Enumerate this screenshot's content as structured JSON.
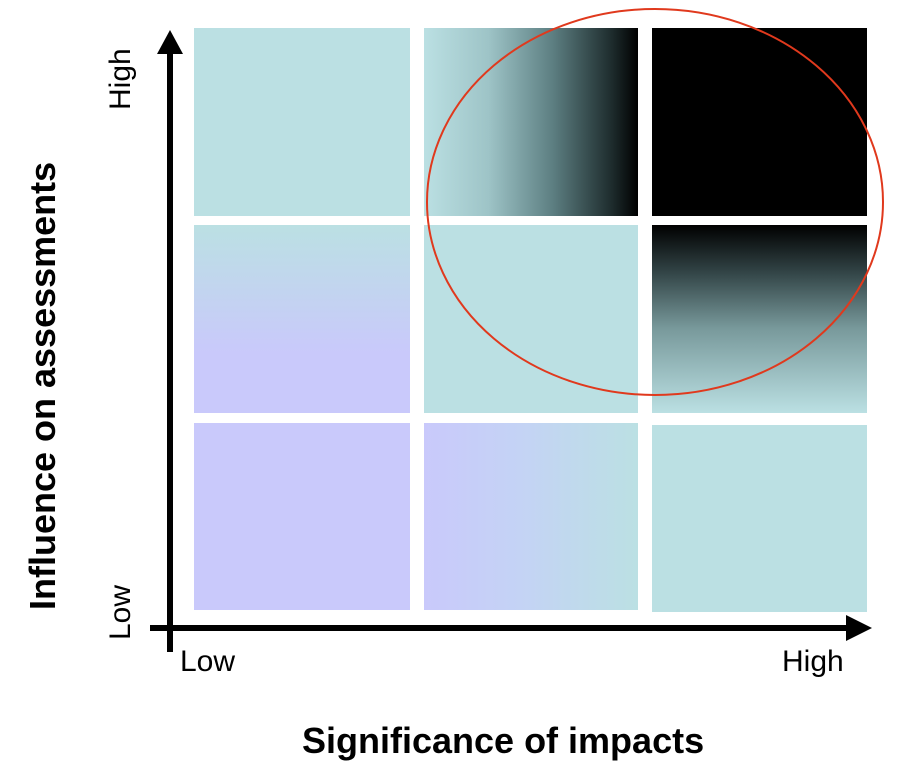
{
  "diagram": {
    "x_axis": {
      "title": "Significance of impacts",
      "low_label": "Low",
      "high_label": "High"
    },
    "y_axis": {
      "title": "Influence on assessments",
      "low_label": "Low",
      "high_label": "High"
    },
    "colors": {
      "teal": "#bbe0e3",
      "lavender": "#c9c9fb",
      "black": "#000000",
      "arrow": "#000000",
      "ellipse": "#e0391d",
      "grid_gap": "#ffffff"
    }
  }
}
